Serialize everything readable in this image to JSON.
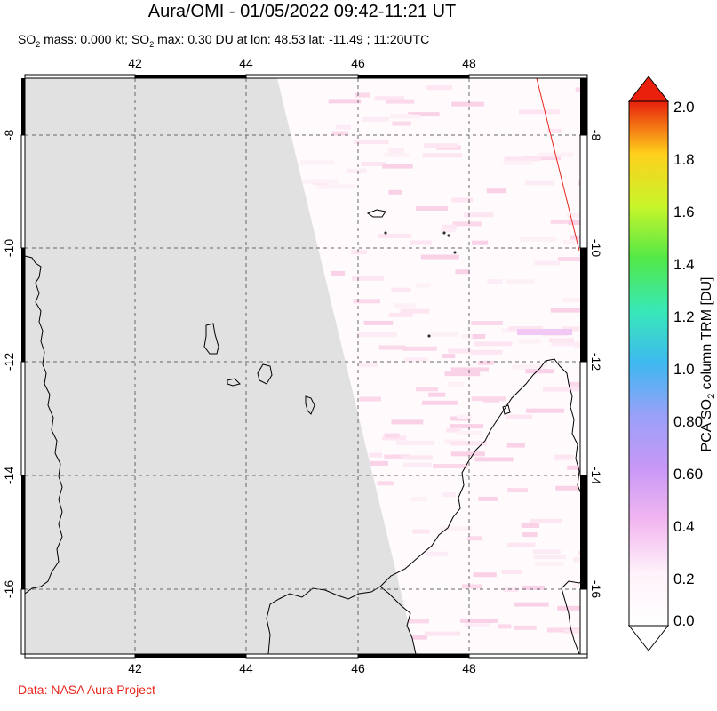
{
  "title": "Aura/OMI - 01/05/2022 09:42-11:21 UT",
  "subtitle": {
    "mass_label": "SO",
    "mass_sub": "2",
    "mass_text": " mass: 0.000 kt; SO",
    "max_sub": "2",
    "max_text": " max: 0.30 DU at lon: 48.53 lat: -11.49 ; 11:20UTC"
  },
  "credit": "Data: NASA Aura Project",
  "map": {
    "lon_ticks": [
      "42",
      "44",
      "46",
      "48"
    ],
    "lat_ticks": [
      "-8",
      "-10",
      "-12",
      "-14",
      "-16"
    ],
    "lon_range": [
      40.0,
      50.0
    ],
    "lat_range": [
      -17.0,
      -7.0
    ],
    "no_data_color": "#e1e1e1",
    "coastline_color": "#000000",
    "swath_edge_color": "#e8261c"
  },
  "colorbar": {
    "label_pre": "PCA SO",
    "label_sub": "2",
    "label_post": " column TRM [DU]",
    "ticks": [
      "2.0",
      "1.8",
      "1.6",
      "1.4",
      "1.2",
      "1.0",
      "0.80",
      "0.60",
      "0.4",
      "0.2",
      "0.0"
    ],
    "range": [
      0.0,
      2.0
    ],
    "colors": [
      "#e8200c",
      "#ff7a10",
      "#ffd01c",
      "#c8f52a",
      "#52e848",
      "#38e8b8",
      "#3eb8f0",
      "#9aa0f8",
      "#c898f6",
      "#f2b6f0",
      "#fff2fa",
      "#ffffff"
    ]
  }
}
